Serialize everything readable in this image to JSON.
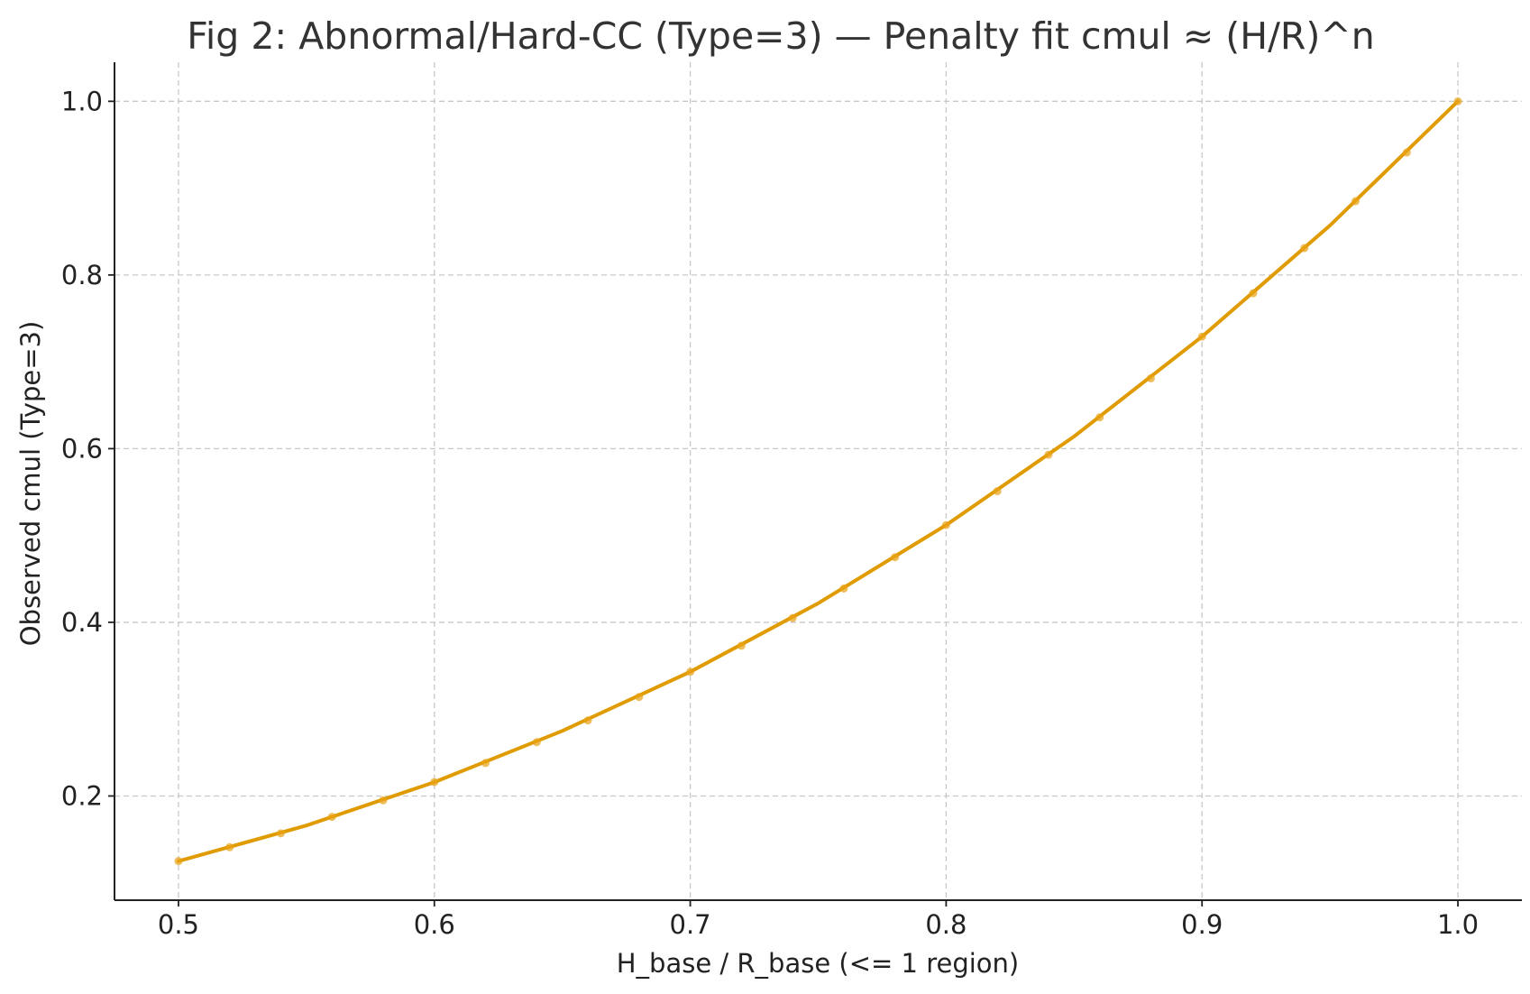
{
  "chart_data": {
    "type": "scatter",
    "title": "Fig 2: Abnormal/Hard-CC (Type=3) — Penalty fit cmul ≈ (H/R)^n",
    "xlabel": "H_base / R_base (<= 1 region)",
    "ylabel": "Observed cmul (Type=3)",
    "xlim": [
      0.475,
      1.025
    ],
    "ylim": [
      0.08,
      1.045
    ],
    "xticks": [
      0.5,
      0.6,
      0.7,
      0.8,
      0.9,
      1.0
    ],
    "xtick_labels": [
      "0.5",
      "0.6",
      "0.7",
      "0.8",
      "0.9",
      "1.0"
    ],
    "yticks": [
      0.2,
      0.4,
      0.6,
      0.8,
      1.0
    ],
    "ytick_labels": [
      "0.2",
      "0.4",
      "0.6",
      "0.8",
      "1.0"
    ],
    "grid": true,
    "legend": "none",
    "colors": {
      "points": "#e8a317",
      "fit_line": "#e09b00"
    },
    "series": [
      {
        "kind": "scatter",
        "x": [
          0.5,
          0.52,
          0.54,
          0.56,
          0.58,
          0.6,
          0.62,
          0.64,
          0.66,
          0.68,
          0.7,
          0.72,
          0.74,
          0.76,
          0.78,
          0.8,
          0.82,
          0.84,
          0.86,
          0.88,
          0.9,
          0.92,
          0.94,
          0.96,
          0.98,
          1.0
        ],
        "y": [
          0.125,
          0.141,
          0.157,
          0.176,
          0.195,
          0.216,
          0.238,
          0.262,
          0.287,
          0.314,
          0.343,
          0.373,
          0.405,
          0.439,
          0.475,
          0.512,
          0.551,
          0.593,
          0.636,
          0.681,
          0.729,
          0.779,
          0.831,
          0.885,
          0.941,
          1.0
        ]
      },
      {
        "kind": "line",
        "x": [
          0.5,
          0.55,
          0.6,
          0.65,
          0.7,
          0.75,
          0.8,
          0.85,
          0.9,
          0.95,
          1.0
        ],
        "y": [
          0.125,
          0.166,
          0.216,
          0.275,
          0.343,
          0.422,
          0.512,
          0.614,
          0.729,
          0.857,
          1.0
        ]
      }
    ]
  }
}
